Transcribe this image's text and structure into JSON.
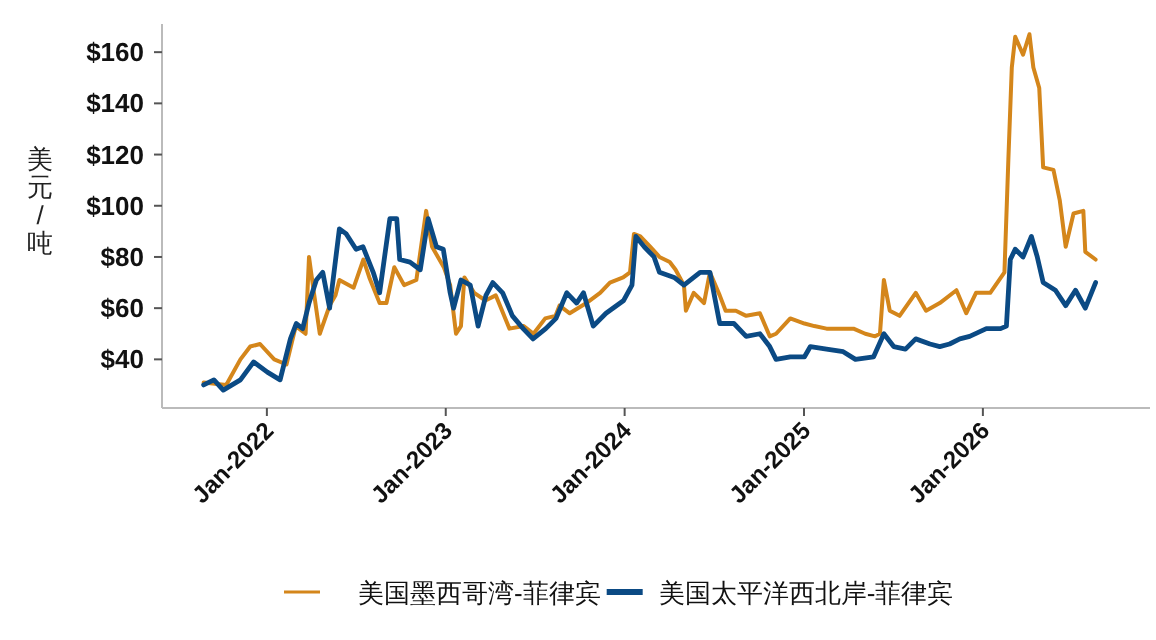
{
  "chart_data": {
    "type": "line",
    "ylabel": "美元/吨",
    "legend": "bottom",
    "xlim": [
      "2021-06-01",
      "2026-12-08"
    ],
    "ylim": [
      21,
      171
    ],
    "xticks": [
      {
        "value": "2022-01-01",
        "label": "Jan-2022"
      },
      {
        "value": "2023-01-01",
        "label": "Jan-2023"
      },
      {
        "value": "2024-01-01",
        "label": "Jan-2024"
      },
      {
        "value": "2025-01-01",
        "label": "Jan-2025"
      },
      {
        "value": "2026-01-01",
        "label": "Jan-2026"
      }
    ],
    "yticks": [
      {
        "value": 40,
        "label": "$40"
      },
      {
        "value": 60,
        "label": "$60"
      },
      {
        "value": 80,
        "label": "$80"
      },
      {
        "value": 100,
        "label": "$100"
      },
      {
        "value": 120,
        "label": "$120"
      },
      {
        "value": 140,
        "label": "$140"
      },
      {
        "value": 160,
        "label": "$160"
      }
    ],
    "series": [
      {
        "name": "美国墨西哥湾-菲律宾",
        "color": "#d4861b",
        "x": [
          "2021-08-25",
          "2021-10-10",
          "2021-11-08",
          "2021-11-28",
          "2021-12-18",
          "2022-01-16",
          "2022-02-10",
          "2022-03-01",
          "2022-03-21",
          "2022-03-28",
          "2022-04-07",
          "2022-04-19",
          "2022-05-09",
          "2022-05-21",
          "2022-05-29",
          "2022-06-27",
          "2022-07-17",
          "2022-07-29",
          "2022-08-19",
          "2022-09-02",
          "2022-09-18",
          "2022-10-08",
          "2022-11-02",
          "2022-11-22",
          "2022-12-04",
          "2022-12-28",
          "2023-01-10",
          "2023-01-22",
          "2023-02-01",
          "2023-02-08",
          "2023-02-28",
          "2023-03-23",
          "2023-04-13",
          "2023-05-11",
          "2023-06-09",
          "2023-06-29",
          "2023-07-23",
          "2023-08-13",
          "2023-08-21",
          "2023-09-11",
          "2023-10-15",
          "2023-11-12",
          "2023-12-02",
          "2023-12-29",
          "2024-01-12",
          "2024-01-20",
          "2024-02-02",
          "2024-02-22",
          "2024-03-12",
          "2024-04-02",
          "2024-04-14",
          "2024-05-01",
          "2024-05-05",
          "2024-05-21",
          "2024-06-11",
          "2024-06-23",
          "2024-07-13",
          "2024-07-25",
          "2024-08-15",
          "2024-09-05",
          "2024-10-03",
          "2024-10-23",
          "2024-11-05",
          "2024-12-04",
          "2025-01-02",
          "2025-01-22",
          "2025-02-16",
          "2025-04-12",
          "2025-05-06",
          "2025-05-26",
          "2025-06-05",
          "2025-06-13",
          "2025-06-25",
          "2025-07-15",
          "2025-08-17",
          "2025-09-07",
          "2025-10-05",
          "2025-11-08",
          "2025-11-28",
          "2025-12-18",
          "2026-01-16",
          "2026-02-14",
          "2026-02-22",
          "2026-03-01",
          "2026-03-08",
          "2026-03-24",
          "2026-04-06",
          "2026-04-14",
          "2026-04-26",
          "2026-05-04",
          "2026-05-25",
          "2026-06-07",
          "2026-06-19",
          "2026-07-05",
          "2026-07-25",
          "2026-07-29",
          "2026-08-19"
        ],
        "values": [
          31,
          30,
          40,
          45,
          46,
          40,
          38,
          53,
          50,
          80,
          66,
          50,
          61,
          65,
          71,
          68,
          79,
          72,
          62,
          62,
          76,
          69,
          71,
          98,
          84,
          76,
          69,
          50,
          53,
          72,
          66,
          63,
          65,
          52,
          53,
          50,
          56,
          57,
          61,
          58,
          62,
          66,
          70,
          72,
          74,
          89,
          88,
          84,
          80,
          78,
          75,
          69,
          59,
          66,
          62,
          74,
          65,
          59,
          59,
          57,
          58,
          49,
          50,
          56,
          54,
          53,
          52,
          52,
          50,
          49,
          50,
          71,
          59,
          57,
          66,
          59,
          62,
          67,
          58,
          66,
          66,
          74,
          118,
          154,
          166,
          159,
          167,
          154,
          146,
          115,
          114,
          102,
          84,
          97,
          98,
          82,
          79
        ]
      },
      {
        "name": "美国太平洋西北岸-菲律宾",
        "color": "#0b4a84",
        "x": [
          "2021-08-25",
          "2021-09-15",
          "2021-10-04",
          "2021-11-08",
          "2021-12-05",
          "2022-01-02",
          "2022-01-28",
          "2022-02-18",
          "2022-03-02",
          "2022-03-15",
          "2022-03-28",
          "2022-04-12",
          "2022-04-25",
          "2022-05-09",
          "2022-05-29",
          "2022-06-12",
          "2022-07-02",
          "2022-07-16",
          "2022-08-06",
          "2022-08-19",
          "2022-09-09",
          "2022-09-23",
          "2022-09-29",
          "2022-10-20",
          "2022-11-10",
          "2022-11-26",
          "2022-12-13",
          "2022-12-27",
          "2023-01-10",
          "2023-01-17",
          "2023-02-01",
          "2023-02-20",
          "2023-03-08",
          "2023-03-24",
          "2023-04-07",
          "2023-04-27",
          "2023-05-17",
          "2023-06-08",
          "2023-06-28",
          "2023-07-24",
          "2023-08-14",
          "2023-09-05",
          "2023-09-25",
          "2023-10-09",
          "2023-10-29",
          "2023-11-24",
          "2023-12-30",
          "2024-01-16",
          "2024-01-24",
          "2024-02-10",
          "2024-03-01",
          "2024-03-12",
          "2024-04-11",
          "2024-05-01",
          "2024-05-21",
          "2024-06-03",
          "2024-06-23",
          "2024-07-13",
          "2024-08-11",
          "2024-09-05",
          "2024-10-03",
          "2024-10-23",
          "2024-11-05",
          "2024-12-04",
          "2025-01-02",
          "2025-01-14",
          "2025-02-16",
          "2025-03-22",
          "2025-04-16",
          "2025-05-23",
          "2025-06-13",
          "2025-07-03",
          "2025-07-27",
          "2025-08-17",
          "2025-09-15",
          "2025-10-05",
          "2025-10-25",
          "2025-11-15",
          "2025-12-05",
          "2026-01-08",
          "2026-02-06",
          "2026-02-18",
          "2026-02-26",
          "2026-03-08",
          "2026-03-24",
          "2026-04-10",
          "2026-04-22",
          "2026-05-04",
          "2026-05-29",
          "2026-06-19",
          "2026-07-09",
          "2026-07-29",
          "2026-08-19"
        ],
        "values": [
          30,
          32,
          28,
          32,
          39,
          35,
          32,
          48,
          54,
          52,
          62,
          71,
          74,
          60,
          91,
          89,
          83,
          84,
          74,
          66,
          95,
          95,
          79,
          78,
          75,
          95,
          84,
          83,
          66,
          60,
          71,
          69,
          53,
          65,
          70,
          66,
          57,
          52,
          48,
          52,
          56,
          66,
          62,
          66,
          53,
          58,
          63,
          69,
          88,
          84,
          80,
          74,
          72,
          69,
          72,
          74,
          74,
          54,
          54,
          49,
          50,
          45,
          40,
          41,
          41,
          45,
          44,
          43,
          40,
          41,
          50,
          45,
          44,
          48,
          46,
          45,
          46,
          48,
          49,
          52,
          52,
          53,
          79,
          83,
          80,
          88,
          80,
          70,
          67,
          61,
          67,
          60,
          70
        ]
      }
    ]
  }
}
